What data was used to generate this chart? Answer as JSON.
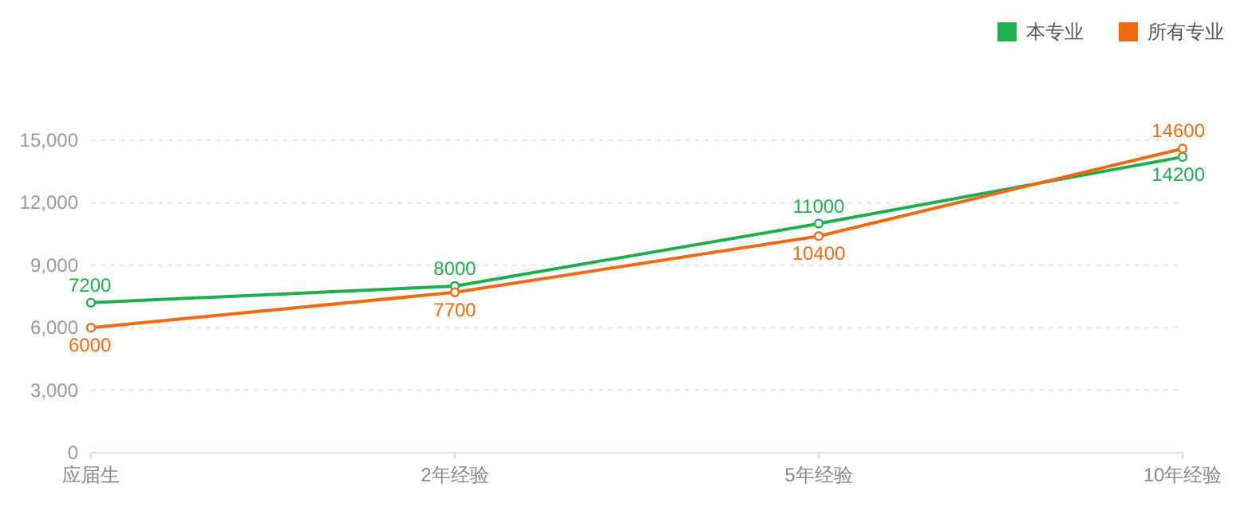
{
  "chart_data": {
    "type": "line",
    "categories": [
      "应届生",
      "2年经验",
      "5年经验",
      "10年经验"
    ],
    "series": [
      {
        "name": "本专业",
        "color": "#1fad4e",
        "values": [
          7200,
          8000,
          11000,
          14200
        ]
      },
      {
        "name": "所有专业",
        "color": "#ee6a14",
        "values": [
          6000,
          7700,
          10400,
          14600
        ]
      }
    ],
    "ylim": [
      0,
      15000
    ],
    "yticks": [
      {
        "value": 0,
        "label": "0"
      },
      {
        "value": 3000,
        "label": "3,000"
      },
      {
        "value": 6000,
        "label": "6,000"
      },
      {
        "value": 9000,
        "label": "9,000"
      },
      {
        "value": 12000,
        "label": "12,000"
      },
      {
        "value": 15000,
        "label": "15,000"
      }
    ],
    "grid": "y",
    "legend": "top right",
    "marker": "circle",
    "line_style": "solid",
    "data_labels": true
  }
}
